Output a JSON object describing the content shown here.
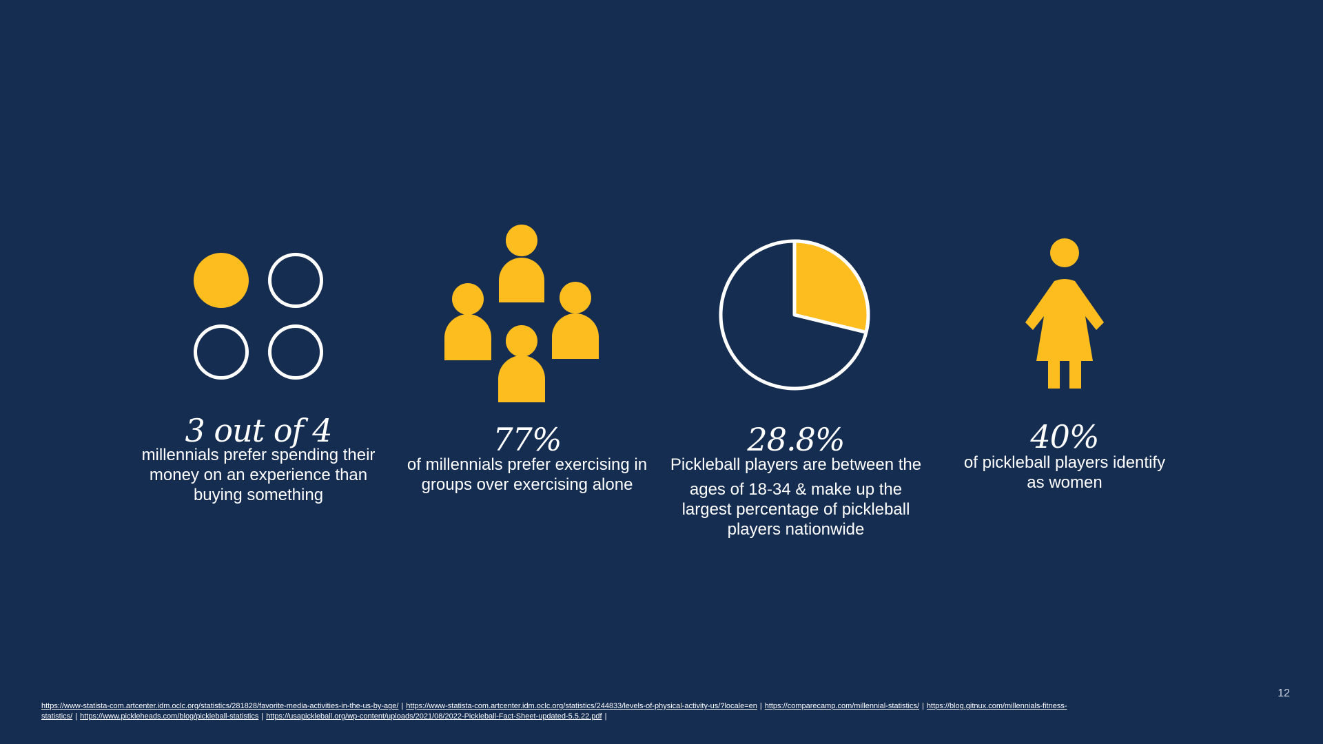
{
  "colors": {
    "background": "#162d52",
    "accent": "#fdbd1f",
    "text": "#ffffff"
  },
  "stats": [
    {
      "value": "3 out of 4",
      "caption": "millennials prefer spending their money on an experience than buying something",
      "icon": "circles-3-of-4-icon"
    },
    {
      "value": "77%",
      "caption": "of millennials prefer exercising in groups over exercising alone",
      "icon": "group-of-people-icon"
    },
    {
      "value": "28.8%",
      "caption_line1": "Pickleball players are between the",
      "caption_line2": "ages of 18-34 & make up the largest percentage of pickleball players nationwide",
      "icon": "pie-chart-icon",
      "pie_fraction": 0.288
    },
    {
      "value": "40%",
      "caption": "of pickleball players identify as women",
      "icon": "woman-icon"
    }
  ],
  "sources": [
    "https://www-statista-com.artcenter.idm.oclc.org/statistics/281828/favorite-media-activities-in-the-us-by-age/",
    "https://www-statista-com.artcenter.idm.oclc.org/statistics/244833/levels-of-physical-activity-us/?locale=en",
    "https://comparecamp.com/millennial-statistics/",
    "https://blog.gitnux.com/millennials-fitness-statistics/",
    "https://www.pickleheads.com/blog/pickleball-statistics",
    "https://usapickleball.org/wp-content/uploads/2021/08/2022-Pickleball-Fact-Sheet-updated-5.5.22.pdf"
  ],
  "slide_number": "12"
}
